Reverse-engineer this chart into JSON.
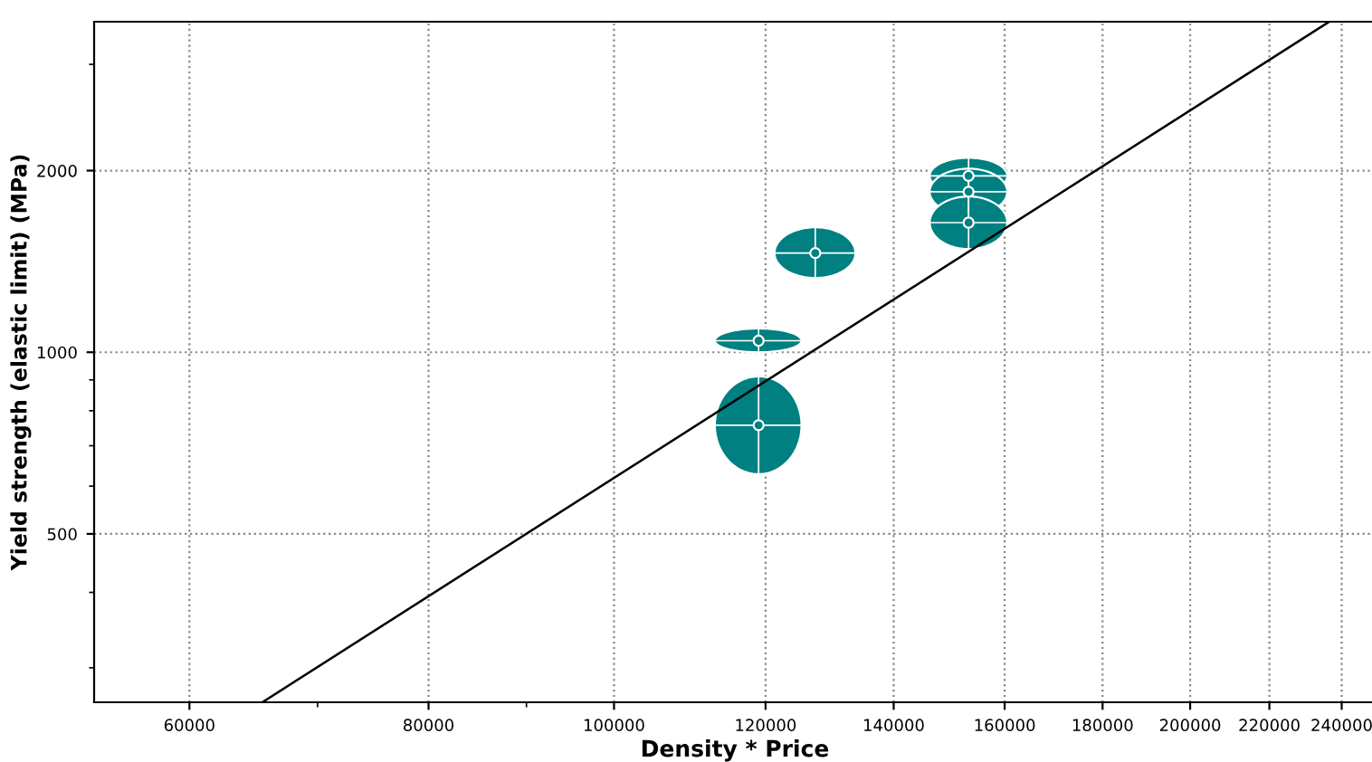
{
  "chart_data": {
    "type": "scatter",
    "xlabel": "Density * Price",
    "ylabel": "Yield strength (elastic limit) (MPa)",
    "log": "xy",
    "grid": true,
    "xlim": [
      53500,
      250000
    ],
    "ylim": [
      263,
      3530
    ],
    "xticks": [
      60000,
      80000,
      100000,
      120000,
      140000,
      160000,
      180000,
      200000,
      220000,
      240000
    ],
    "yticks": [
      500,
      1000,
      2000
    ],
    "series": [
      {
        "type": "scatter",
        "color": "#008080",
        "x": [
          119000,
          119000,
          127400,
          153200,
          153200,
          153200
        ],
        "values": [
          757,
          1045,
          1460,
          1960,
          1845,
          1640
        ],
        "xerrors": [
          [
            112900,
            125300
          ],
          [
            112900,
            125300
          ],
          [
            121300,
            133700
          ],
          [
            146200,
            160500
          ],
          [
            146200,
            160500
          ],
          [
            146200,
            160500
          ]
        ],
        "errors": [
          [
            628,
            912
          ],
          [
            1000,
            1095
          ],
          [
            1328,
            1611
          ],
          [
            1830,
            2100
          ],
          [
            1690,
            2015
          ],
          [
            1483,
            1812
          ]
        ]
      },
      {
        "type": "line",
        "color": "#000000",
        "x": [
          65500,
          236400
        ],
        "values": [
          263,
          3530
        ]
      }
    ]
  }
}
